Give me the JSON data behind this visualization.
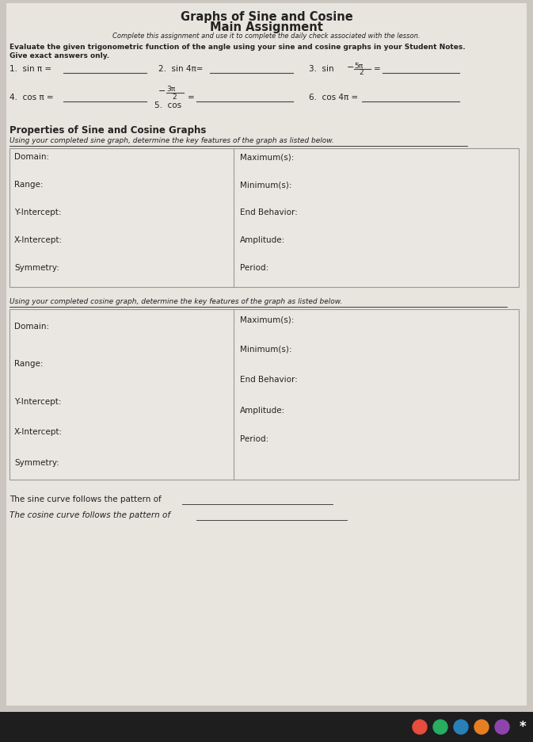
{
  "title_line1": "Graphs of Sine and Cosine",
  "title_line2": "Main Assignment",
  "subtitle": "Complete this assignment and use it to complete the daily check associated with the lesson.",
  "instruction1": "Evaluate the given trigonometric function of the angle using your sine and cosine graphs in your Student Notes.",
  "instruction2": "Give exact answers only.",
  "q1": "1.  sin π =",
  "q2": "2.  sin 4π=",
  "q3_pre": "3.  sin",
  "q3_frac_num": "5π",
  "q3_frac_den": "2",
  "q3_neg": "−",
  "q4": "4.  cos π =",
  "q5_pre": "5.  cos",
  "q5_frac_num": "3π",
  "q5_frac_den": "2",
  "q5_neg": "−",
  "q6": "6.  cos 4π =",
  "section_title": "Properties of Sine and Cosine Graphs",
  "sine_intro": "Using your completed sine graph, determine the key features of the graph as listed below.",
  "cosine_intro": "Using your completed cosine graph, determine the key features of the graph as listed below.",
  "sine_left": [
    "Domain:",
    "Range:",
    "Y-Intercept:",
    "X-Intercept:",
    "Symmetry:"
  ],
  "sine_right": [
    "Maximum(s):",
    "Minimum(s):",
    "End Behavior:",
    "Amplitude:",
    "Period:"
  ],
  "cosine_left": [
    "Domain:",
    "Range:",
    "Y-Intercept:",
    "X-Intercept:",
    "Symmetry:"
  ],
  "cosine_right": [
    "Maximum(s):",
    "Minimum(s):",
    "End Behavior:",
    "Amplitude:",
    "Period:"
  ],
  "footer1": "The sine curve follows the pattern of",
  "footer2": "The cosine curve follows the pattern of",
  "bg_color": "#cbc6bf",
  "paper_color": "#e8e4de",
  "box_bg": "#eae7e2",
  "text_color": "#222222",
  "box_border": "#999999",
  "taskbar_color": "#1e1e1e",
  "icon_colors": [
    "#e74c3c",
    "#27ae60",
    "#2980b9",
    "#e67e22",
    "#8e44ad"
  ]
}
